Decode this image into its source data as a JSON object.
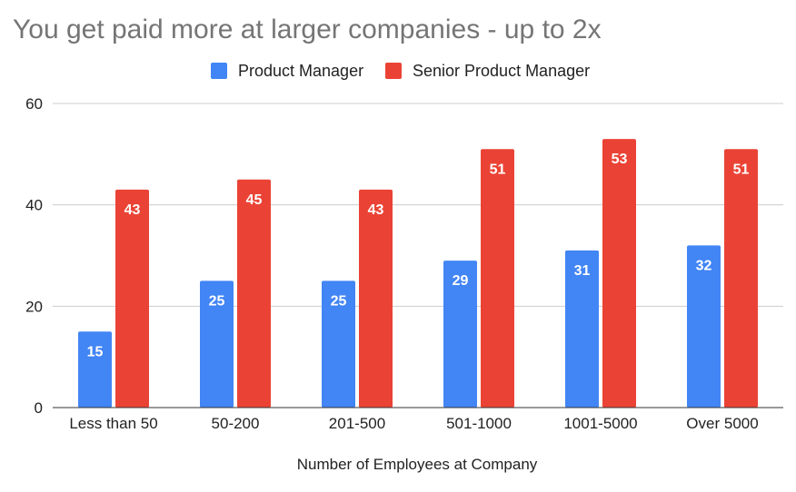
{
  "colors": {
    "series_0": "#4285f4",
    "series_1": "#ea4335"
  },
  "chart_data": {
    "type": "bar",
    "title": "You get paid more at larger companies - up to 2x",
    "xlabel": "Number of Employees at Company",
    "ylabel": "",
    "ylim": [
      0,
      60
    ],
    "yticks": [
      "0",
      "20",
      "40",
      "60"
    ],
    "grid": true,
    "legend_position": "top",
    "categories": [
      "Less than 50",
      "50-200",
      "201-500",
      "501-1000",
      "1001-5000",
      "Over 5000"
    ],
    "series": [
      {
        "name": "Product Manager",
        "values": [
          15,
          25,
          25,
          29,
          31,
          32
        ]
      },
      {
        "name": "Senior Product Manager",
        "values": [
          43,
          45,
          43,
          51,
          53,
          51
        ]
      }
    ]
  }
}
